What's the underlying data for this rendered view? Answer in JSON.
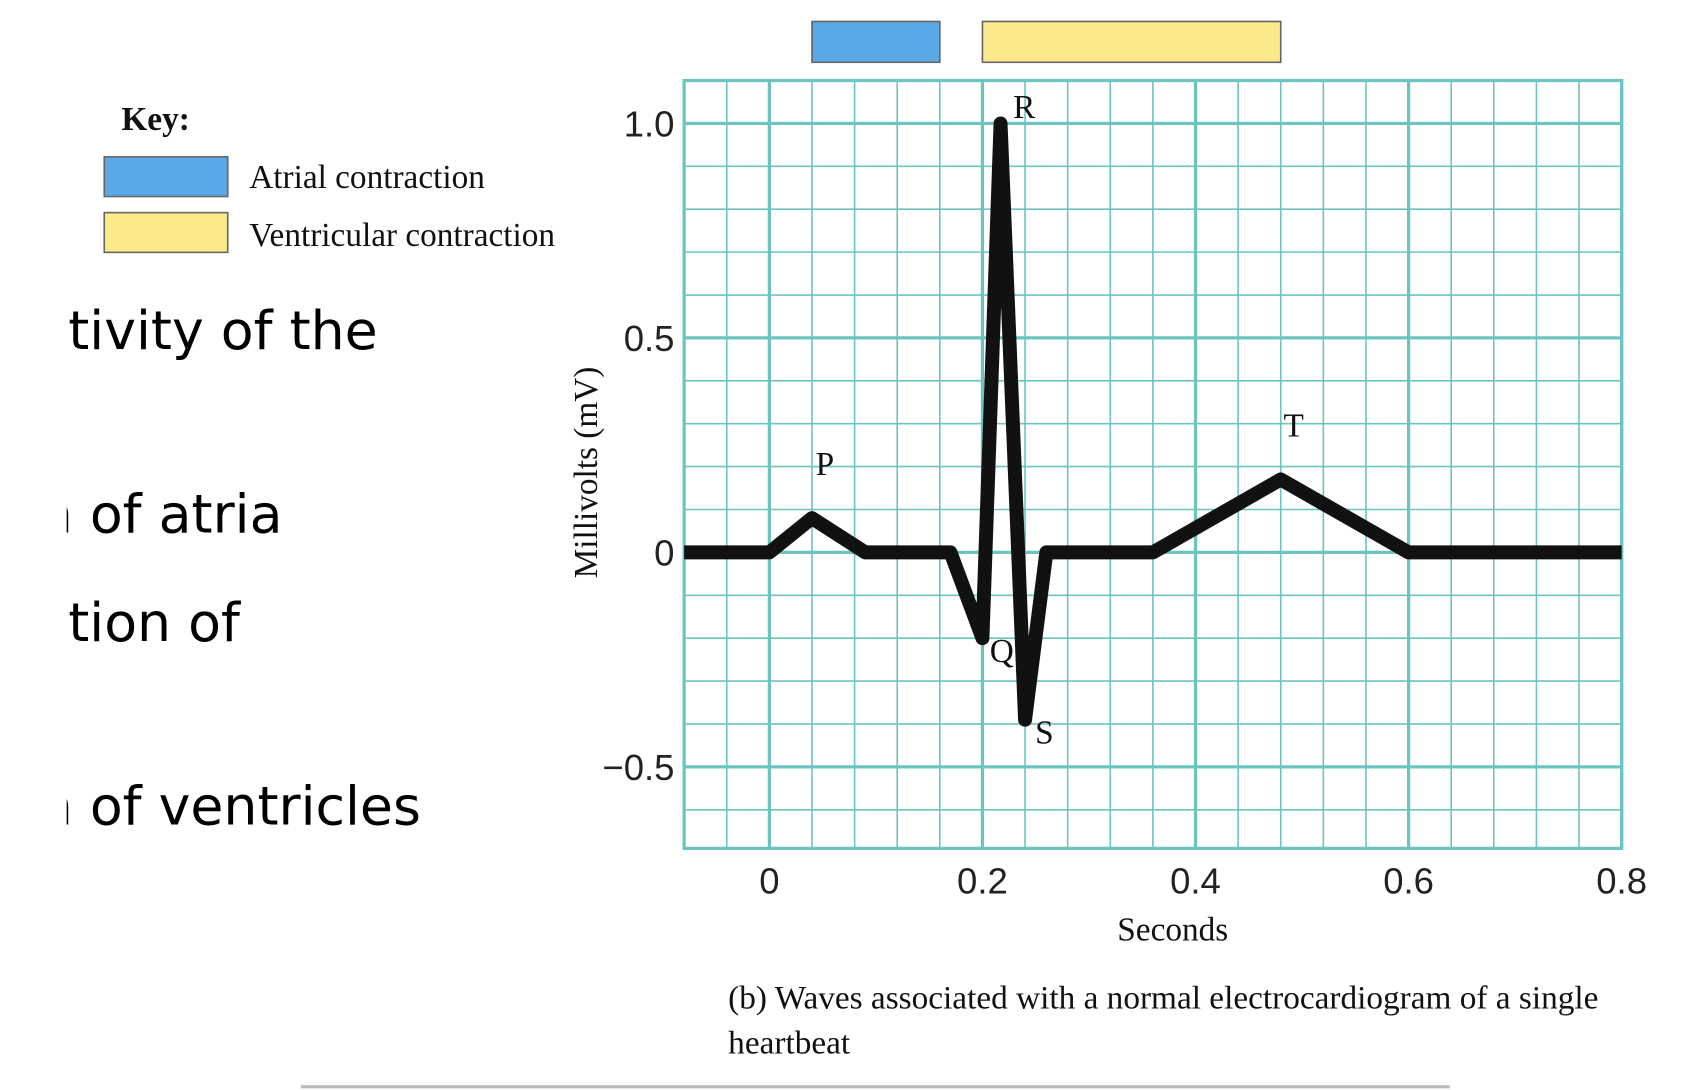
{
  "slide_text": [
    "ctivity of the",
    "n of atria",
    "ction of",
    "n of ventricles"
  ],
  "key": {
    "title": "Key:"
  },
  "chart_data": {
    "type": "line",
    "caption": "(b) Waves associated with a normal electrocardiogram of a single heartbeat",
    "x_label": "Seconds",
    "y_label": "Millivolts (mV)",
    "xlim": [
      -0.08,
      0.8
    ],
    "ylim": [
      -0.69,
      1.1
    ],
    "xticks": [
      0,
      0.2,
      0.4,
      0.6,
      0.8
    ],
    "yticks": [
      {
        "value": 1,
        "label": "1.0"
      },
      0.5,
      0,
      {
        "value": -0.5,
        "label": "−0.5"
      }
    ],
    "grid": true,
    "grid_color": "#6cc4c0",
    "series": [
      {
        "color": "#111111",
        "x": [
          -0.08,
          0,
          0.04,
          0.09,
          0.17,
          0.2,
          0.217,
          0.24,
          0.26,
          0.36,
          0.48,
          0.6,
          0.8
        ],
        "values": [
          0,
          0,
          0.08,
          0,
          0,
          -0.2,
          1.0,
          -0.39,
          0,
          0,
          0.17,
          0,
          0
        ],
        "point_labels": [
          null,
          null,
          "P",
          null,
          null,
          "Q",
          "R",
          "S",
          null,
          null,
          "T",
          null,
          null
        ]
      }
    ],
    "intervals": [
      {
        "name": "Atrial contraction",
        "color": "#5aa9e6",
        "start": 0.04,
        "end": 0.16
      },
      {
        "name": "Ventricular contraction",
        "color": "#fbe98a",
        "start": 0.2,
        "end": 0.48
      }
    ]
  }
}
